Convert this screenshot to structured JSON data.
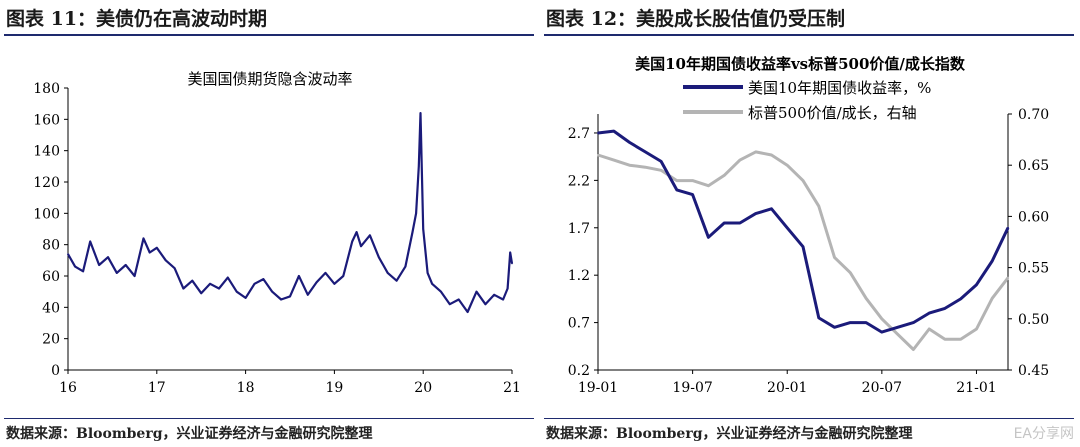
{
  "figures": {
    "left": {
      "figure_title": "图表 11：美债仍在高波动时期",
      "source": "数据来源：Bloomberg，兴业证券经济与金融研究院整理"
    },
    "right": {
      "figure_title": "图表 12：美股成长股估值仍受压制",
      "source": "数据来源：Bloomberg，兴业证券经济与金融研究院整理",
      "watermark": "EA分享网"
    }
  },
  "colors": {
    "navy": "#1b1b7a",
    "gray": "#b4b4b4",
    "rule": "#1e2a6e"
  },
  "chart_data": [
    {
      "type": "line",
      "title": "美国国债期货隐含波动率",
      "xlabel": "",
      "ylabel": "",
      "xlim": [
        2016,
        2021
      ],
      "ylim": [
        0,
        180
      ],
      "x_ticks": [
        2016,
        2017,
        2018,
        2019,
        2020,
        2021
      ],
      "x_tick_labels": [
        "16",
        "17",
        "18",
        "19",
        "20",
        "21"
      ],
      "y_ticks": [
        0,
        20,
        40,
        60,
        80,
        100,
        120,
        140,
        160,
        180
      ],
      "grid": false,
      "series": [
        {
          "color": "#1b1b7a",
          "x": [
            2016.0,
            2016.08,
            2016.17,
            2016.25,
            2016.35,
            2016.45,
            2016.55,
            2016.65,
            2016.75,
            2016.85,
            2016.92,
            2017.0,
            2017.1,
            2017.2,
            2017.3,
            2017.4,
            2017.5,
            2017.6,
            2017.7,
            2017.8,
            2017.9,
            2018.0,
            2018.1,
            2018.2,
            2018.3,
            2018.4,
            2018.5,
            2018.6,
            2018.7,
            2018.8,
            2018.9,
            2019.0,
            2019.1,
            2019.2,
            2019.25,
            2019.3,
            2019.4,
            2019.5,
            2019.6,
            2019.7,
            2019.8,
            2019.88,
            2019.92,
            2019.95,
            2019.97,
            2020.0,
            2020.05,
            2020.1,
            2020.2,
            2020.3,
            2020.4,
            2020.5,
            2020.6,
            2020.7,
            2020.8,
            2020.9,
            2020.95,
            2020.98,
            2021.0
          ],
          "values": [
            74,
            66,
            63,
            82,
            67,
            72,
            62,
            67,
            60,
            84,
            75,
            78,
            70,
            65,
            52,
            57,
            49,
            55,
            52,
            59,
            50,
            46,
            55,
            58,
            50,
            45,
            47,
            60,
            48,
            56,
            62,
            55,
            60,
            82,
            88,
            79,
            86,
            72,
            62,
            57,
            66,
            88,
            100,
            130,
            164,
            90,
            62,
            55,
            50,
            42,
            45,
            37,
            50,
            42,
            48,
            45,
            52,
            75,
            68
          ]
        }
      ]
    },
    {
      "type": "line",
      "title": "美国10年期国债收益率vs标普500价值/成长指数",
      "xlabel": "",
      "ylabel": "",
      "xlim": [
        "2019-01",
        "2021-03"
      ],
      "x_ticks": [
        "2019-01",
        "2019-07",
        "2020-01",
        "2020-07",
        "2021-01"
      ],
      "x_tick_labels": [
        "19-01",
        "19-07",
        "20-01",
        "20-07",
        "21-01"
      ],
      "ylim_left": [
        0.2,
        2.9
      ],
      "y_ticks_left": [
        0.2,
        0.7,
        1.2,
        1.7,
        2.2,
        2.7
      ],
      "ylim_right": [
        0.45,
        0.7
      ],
      "y_ticks_right": [
        "0.45",
        "0.50",
        "0.55",
        "0.60",
        "0.65",
        "0.70"
      ],
      "legend_position": "top",
      "grid": false,
      "series": [
        {
          "name": "标普500价值/成长，右轴",
          "axis": "right",
          "color": "#b4b4b4",
          "x": [
            "2019-01-01",
            "2019-02-01",
            "2019-03-01",
            "2019-04-01",
            "2019-05-01",
            "2019-06-01",
            "2019-07-01",
            "2019-08-01",
            "2019-09-01",
            "2019-10-01",
            "2019-11-01",
            "2019-12-01",
            "2020-01-01",
            "2020-02-01",
            "2020-03-01",
            "2020-04-01",
            "2020-05-01",
            "2020-06-01",
            "2020-07-01",
            "2020-08-01",
            "2020-09-01",
            "2020-10-01",
            "2020-11-01",
            "2020-12-01",
            "2021-01-01",
            "2021-02-01",
            "2021-03-01"
          ],
          "values": [
            0.66,
            0.655,
            0.65,
            0.648,
            0.645,
            0.635,
            0.635,
            0.63,
            0.64,
            0.655,
            0.663,
            0.66,
            0.65,
            0.635,
            0.61,
            0.56,
            0.545,
            0.52,
            0.5,
            0.485,
            0.47,
            0.49,
            0.48,
            0.48,
            0.49,
            0.52,
            0.54
          ]
        },
        {
          "name": "美国10年期国债收益率，%",
          "axis": "left",
          "color": "#1b1b7a",
          "x": [
            "2019-01-01",
            "2019-02-01",
            "2019-03-01",
            "2019-04-01",
            "2019-05-01",
            "2019-06-01",
            "2019-07-01",
            "2019-08-01",
            "2019-09-01",
            "2019-10-01",
            "2019-11-01",
            "2019-12-01",
            "2020-01-01",
            "2020-02-01",
            "2020-03-01",
            "2020-04-01",
            "2020-05-01",
            "2020-06-01",
            "2020-07-01",
            "2020-08-01",
            "2020-09-01",
            "2020-10-01",
            "2020-11-01",
            "2020-12-01",
            "2021-01-01",
            "2021-02-01",
            "2021-03-01"
          ],
          "values": [
            2.7,
            2.72,
            2.6,
            2.5,
            2.4,
            2.1,
            2.05,
            1.6,
            1.75,
            1.75,
            1.85,
            1.9,
            1.7,
            1.5,
            0.75,
            0.65,
            0.7,
            0.7,
            0.6,
            0.65,
            0.7,
            0.8,
            0.85,
            0.95,
            1.1,
            1.35,
            1.7
          ]
        }
      ]
    }
  ]
}
